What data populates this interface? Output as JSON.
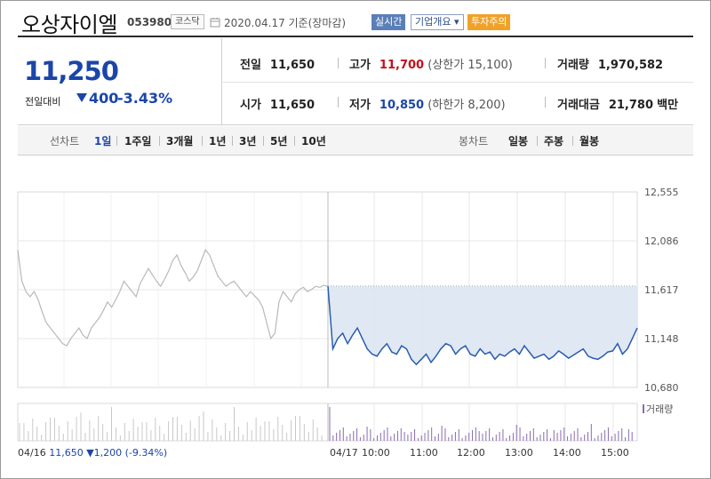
{
  "header": {
    "stock_name": "오상자이엘",
    "stock_code": "053980",
    "market_badge": "코스닥",
    "date_text": "2020.04.17 기준(장마감)",
    "realtime_label": "실시간",
    "company_info_label": "기업개요 ▾",
    "warning_badge": "투자주의"
  },
  "summary": {
    "current_price": "11,250",
    "compare_label": "전일대비",
    "change": "400",
    "change_pct": "-3.43%",
    "prev_close": {
      "label": "전일",
      "value": "11,650"
    },
    "high": {
      "label": "고가",
      "value": "11,700",
      "sub": "(상한가 15,100)"
    },
    "volume": {
      "label": "거래량",
      "value": "1,970,582"
    },
    "open": {
      "label": "시가",
      "value": "11,650"
    },
    "low": {
      "label": "저가",
      "value": "10,850",
      "sub": "(하한가 8,200)"
    },
    "amount": {
      "label": "거래대금",
      "value": "21,780",
      "unit": "백만"
    }
  },
  "tabs": {
    "line_label": "선차트",
    "line_tabs": [
      "1일",
      "1주일",
      "3개월",
      "1년",
      "3년",
      "5년",
      "10년"
    ],
    "line_active": "1일",
    "candle_label": "봉차트",
    "candle_tabs": [
      "일봉",
      "주봉",
      "월봉"
    ]
  },
  "chart_data": {
    "type": "line",
    "y_ticks": [
      "12,555",
      "12,086",
      "11,617",
      "11,148",
      "10,680"
    ],
    "ylim": [
      10680,
      12555
    ],
    "x_ticks": [
      "04/17",
      "10:00",
      "11:00",
      "12:00",
      "13:00",
      "14:00",
      "15:00"
    ],
    "prev_close_ref": 11650,
    "volume_label": "거래량",
    "prev_day_info": {
      "date": "04/16",
      "close": "11,650",
      "change": "▼1,200",
      "pct": "(-9.34%)"
    },
    "series": [
      {
        "values_prev_day": [
          12000,
          11700,
          11600,
          11550,
          11600,
          11520,
          11400,
          11300,
          11250,
          11200,
          11150,
          11100,
          11080,
          11150,
          11200,
          11250,
          11180,
          11150,
          11250,
          11300,
          11350,
          11420,
          11500,
          11450,
          11520,
          11600,
          11700,
          11650,
          11600,
          11550,
          11680,
          11750,
          11820,
          11760,
          11700,
          11650,
          11720,
          11800,
          11900,
          11950,
          11850,
          11780,
          11700,
          11740,
          11800,
          11900,
          12000,
          11950,
          11850,
          11750,
          11700,
          11650,
          11680,
          11700,
          11650,
          11600,
          11550,
          11600,
          11560,
          11520,
          11450,
          11300,
          11150,
          11200,
          11500,
          11600,
          11550,
          11500,
          11580,
          11620,
          11640,
          11600,
          11620,
          11650,
          11640,
          11660,
          11650
        ],
        "values_today": [
          11650,
          11050,
          11150,
          11200,
          11100,
          11180,
          11250,
          11150,
          11050,
          11000,
          10980,
          11050,
          11100,
          11020,
          11000,
          11080,
          11050,
          10950,
          10900,
          10950,
          11000,
          10920,
          10980,
          11050,
          11100,
          11080,
          11000,
          11050,
          11080,
          11000,
          10980,
          11050,
          11000,
          11020,
          10950,
          11000,
          10980,
          11020,
          11050,
          11000,
          11080,
          11020,
          10960,
          10980,
          11000,
          10950,
          10980,
          11030,
          11000,
          10960,
          10990,
          11020,
          11050,
          10980,
          10960,
          10950,
          10980,
          11020,
          11030,
          11100,
          11000,
          11050,
          11150,
          11250
        ]
      }
    ]
  }
}
